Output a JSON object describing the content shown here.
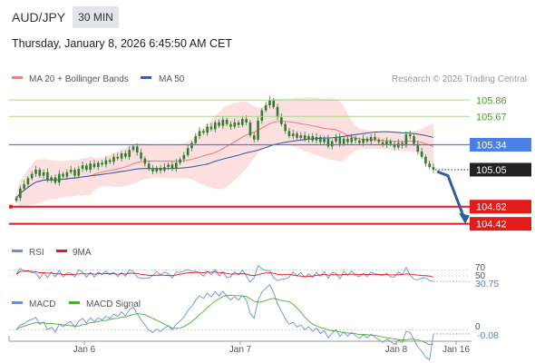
{
  "header": {
    "symbol": "AUD/JPY",
    "timeframe": "30 MIN",
    "datetime": "Thursday, January 8, 2026 6:45:50 AM CET"
  },
  "legend": {
    "ma20": "MA 20 + Bollinger Bands",
    "ma50": "MA 50",
    "credit": "Research © 2026 Trading Central"
  },
  "colors": {
    "ma20": "#f08080",
    "ma50": "#3f5f9f",
    "band": "#fbd5d5",
    "candle": "#2e7d32",
    "green_level": "#a7d98e",
    "blue_level": "#4a7ee8",
    "red_level": "#e21b1b",
    "current": "#222222",
    "rsi": "#6b8fd6",
    "rsi_ma": "#e21b1b",
    "macd": "#6b8fd6",
    "macd_signal": "#4caf2a",
    "arrow": "#2f5e9e"
  },
  "chart_data": [
    {
      "type": "candlestick",
      "ylim": [
        104.3,
        106.0
      ],
      "x_ticks": [
        "Jan 6",
        "Jan 7",
        "Jan 8",
        "Jan 16"
      ],
      "levels": [
        {
          "value": 105.86,
          "label": "105.86",
          "kind": "resistance"
        },
        {
          "value": 105.67,
          "label": "105.67",
          "kind": "resistance"
        },
        {
          "value": 105.34,
          "label": "105.34",
          "kind": "pivot"
        },
        {
          "value": 105.05,
          "label": "105.05",
          "kind": "current"
        },
        {
          "value": 104.62,
          "label": "104.62",
          "kind": "support"
        },
        {
          "value": 104.42,
          "label": "104.42",
          "kind": "support"
        }
      ],
      "close": [
        104.72,
        104.83,
        104.88,
        104.95,
        105.0,
        105.05,
        104.98,
        105.02,
        104.93,
        104.96,
        104.9,
        105.0,
        104.97,
        105.02,
        105.05,
        104.98,
        105.06,
        105.1,
        105.05,
        105.12,
        105.08,
        105.13,
        105.11,
        105.16,
        105.14,
        105.2,
        105.18,
        105.24,
        105.2,
        105.28,
        105.32,
        105.25,
        105.18,
        105.12,
        105.06,
        105.03,
        105.07,
        105.04,
        105.08,
        105.11,
        105.06,
        105.13,
        105.17,
        105.22,
        105.3,
        105.36,
        105.44,
        105.5,
        105.48,
        105.55,
        105.52,
        105.6,
        105.56,
        105.63,
        105.58,
        105.55,
        105.6,
        105.57,
        105.64,
        105.6,
        105.45,
        105.4,
        105.62,
        105.74,
        105.8,
        105.86,
        105.78,
        105.66,
        105.58,
        105.5,
        105.44,
        105.47,
        105.42,
        105.45,
        105.4,
        105.44,
        105.39,
        105.43,
        105.37,
        105.41,
        105.32,
        105.38,
        105.43,
        105.35,
        105.41,
        105.37,
        105.42,
        105.39,
        105.36,
        105.41,
        105.38,
        105.43,
        105.4,
        105.37,
        105.34,
        105.38,
        105.35,
        105.31,
        105.36,
        105.33,
        105.46,
        105.44,
        105.35,
        105.26,
        105.2,
        105.12,
        105.08,
        105.05
      ],
      "rsi": {
        "ylim": [
          0,
          100
        ],
        "ticks": [
          70,
          50
        ],
        "current": 30.75,
        "current_label": "30.75"
      },
      "macd": {
        "ticks": [
          0
        ],
        "current": -0.08,
        "current_label": "-0.08"
      }
    }
  ],
  "panels": {
    "rsi_label": "RSI",
    "rsi_ma_label": "9MA",
    "macd_label": "MACD",
    "macd_signal_label": "MACD Signal",
    "rsi_tick_70": "70",
    "rsi_tick_50": "50",
    "macd_tick_0": "0"
  }
}
